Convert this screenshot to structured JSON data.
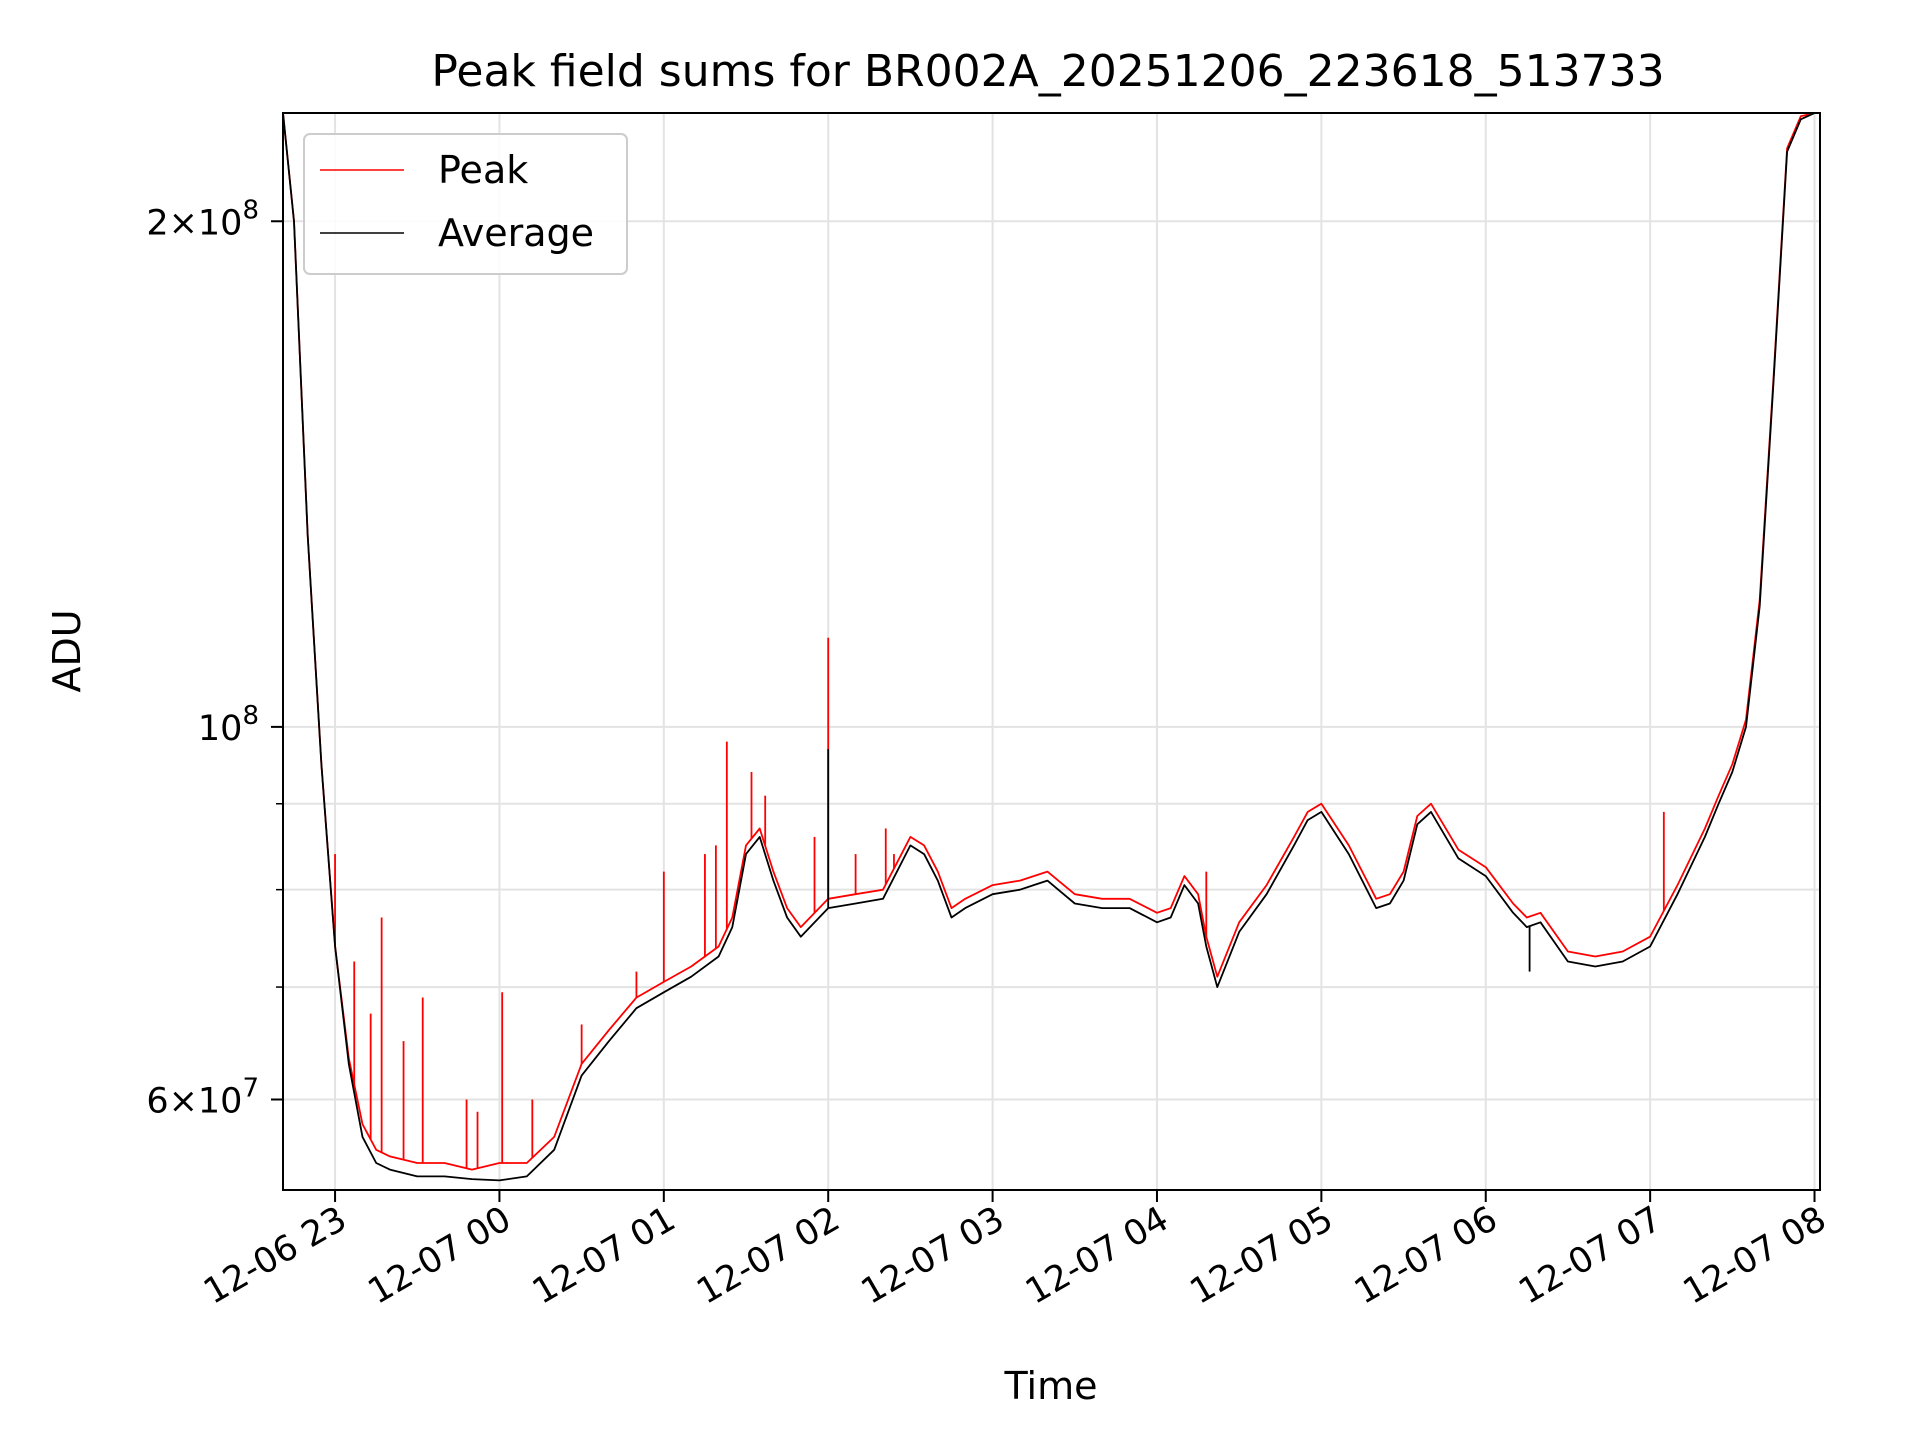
{
  "chart_data": {
    "type": "line",
    "title": "Peak field sums for BR002A_20251206_223618_513733",
    "xlabel": "Time",
    "ylabel": "ADU",
    "yscale": "log",
    "ylim": [
      53000000,
      232000000
    ],
    "xlim": [
      "2025-12-06 22:41",
      "2025-12-07 08:02"
    ],
    "grid": true,
    "legend_position": "top-left",
    "x_ticks": [
      "12-06 23",
      "12-07 00",
      "12-07 01",
      "12-07 02",
      "12-07 03",
      "12-07 04",
      "12-07 05",
      "12-07 06",
      "12-07 07",
      "12-07 08"
    ],
    "y_ticks": [
      {
        "value": 200000000,
        "label_mant": "2",
        "label_base": "10",
        "label_exp": "8"
      },
      {
        "value": 100000000,
        "label_mant": "",
        "label_base": "10",
        "label_exp": "8"
      },
      {
        "value": 60000000,
        "label_mant": "6",
        "label_base": "10",
        "label_exp": "7"
      }
    ],
    "y_minor_ticks": [
      70000000,
      80000000,
      90000000
    ],
    "x": [
      "2025-12-06 22:41",
      "2025-12-06 22:45",
      "2025-12-06 22:50",
      "2025-12-06 22:55",
      "2025-12-06 23:00",
      "2025-12-06 23:05",
      "2025-12-06 23:10",
      "2025-12-06 23:15",
      "2025-12-06 23:20",
      "2025-12-06 23:30",
      "2025-12-06 23:40",
      "2025-12-06 23:50",
      "2025-12-07 00:00",
      "2025-12-07 00:10",
      "2025-12-07 00:20",
      "2025-12-07 00:30",
      "2025-12-07 00:40",
      "2025-12-07 00:50",
      "2025-12-07 01:00",
      "2025-12-07 01:10",
      "2025-12-07 01:20",
      "2025-12-07 01:25",
      "2025-12-07 01:30",
      "2025-12-07 01:35",
      "2025-12-07 01:40",
      "2025-12-07 01:45",
      "2025-12-07 01:50",
      "2025-12-07 02:00",
      "2025-12-07 02:10",
      "2025-12-07 02:20",
      "2025-12-07 02:30",
      "2025-12-07 02:35",
      "2025-12-07 02:40",
      "2025-12-07 02:45",
      "2025-12-07 02:50",
      "2025-12-07 03:00",
      "2025-12-07 03:10",
      "2025-12-07 03:15",
      "2025-12-07 03:20",
      "2025-12-07 03:30",
      "2025-12-07 03:40",
      "2025-12-07 03:50",
      "2025-12-07 04:00",
      "2025-12-07 04:05",
      "2025-12-07 04:10",
      "2025-12-07 04:15",
      "2025-12-07 04:18",
      "2025-12-07 04:22",
      "2025-12-07 04:30",
      "2025-12-07 04:40",
      "2025-12-07 04:50",
      "2025-12-07 04:55",
      "2025-12-07 05:00",
      "2025-12-07 05:10",
      "2025-12-07 05:20",
      "2025-12-07 05:25",
      "2025-12-07 05:30",
      "2025-12-07 05:35",
      "2025-12-07 05:40",
      "2025-12-07 05:50",
      "2025-12-07 06:00",
      "2025-12-07 06:10",
      "2025-12-07 06:15",
      "2025-12-07 06:20",
      "2025-12-07 06:30",
      "2025-12-07 06:40",
      "2025-12-07 06:50",
      "2025-12-07 07:00",
      "2025-12-07 07:10",
      "2025-12-07 07:20",
      "2025-12-07 07:25",
      "2025-12-07 07:30",
      "2025-12-07 07:35",
      "2025-12-07 07:40",
      "2025-12-07 07:45",
      "2025-12-07 07:50",
      "2025-12-07 07:55",
      "2025-12-07 08:00"
    ],
    "series": [
      {
        "name": "Average",
        "color": "#000000",
        "values": [
          232000000,
          200000000,
          130000000,
          95000000,
          74000000,
          63000000,
          57000000,
          55000000,
          54500000,
          54000000,
          54000000,
          53800000,
          53700000,
          54000000,
          56000000,
          62000000,
          65000000,
          68000000,
          69500000,
          71000000,
          73000000,
          76000000,
          84000000,
          86000000,
          81000000,
          77000000,
          75000000,
          78000000,
          78500000,
          79000000,
          85000000,
          84000000,
          81000000,
          77000000,
          78000000,
          79500000,
          80000000,
          80500000,
          81000000,
          78500000,
          78000000,
          78000000,
          76500000,
          77000000,
          80500000,
          78500000,
          74000000,
          70000000,
          75500000,
          79500000,
          85000000,
          88000000,
          89000000,
          84000000,
          78000000,
          78500000,
          81000000,
          87500000,
          89000000,
          83500000,
          81500000,
          77500000,
          76000000,
          76500000,
          72500000,
          72000000,
          72500000,
          74000000,
          79500000,
          86000000,
          90000000,
          94000000,
          100000000,
          118000000,
          160000000,
          220000000,
          230000000,
          232000000
        ]
      },
      {
        "name": "Peak",
        "color": "#ff0000",
        "values": [
          232000000,
          200000000,
          130000000,
          95000000,
          74000000,
          63500000,
          58000000,
          56000000,
          55500000,
          55000000,
          55000000,
          54500000,
          55000000,
          55000000,
          57000000,
          63000000,
          66000000,
          69000000,
          70500000,
          72000000,
          74000000,
          77000000,
          85000000,
          87000000,
          82000000,
          78000000,
          76000000,
          79000000,
          79500000,
          80000000,
          86000000,
          85000000,
          82000000,
          78000000,
          79000000,
          80500000,
          81000000,
          81500000,
          82000000,
          79500000,
          79000000,
          79000000,
          77500000,
          78000000,
          81500000,
          79500000,
          75000000,
          71000000,
          76500000,
          80500000,
          86000000,
          89000000,
          90000000,
          85000000,
          79000000,
          79500000,
          82000000,
          88500000,
          90000000,
          84500000,
          82500000,
          78500000,
          77000000,
          77500000,
          73500000,
          73000000,
          73500000,
          75000000,
          80500000,
          87000000,
          91000000,
          95000000,
          101000000,
          119000000,
          161000000,
          221000000,
          231000000,
          232000000
        ]
      }
    ],
    "peak_spikes": [
      {
        "x": "2025-12-06 23:00",
        "y": 84000000
      },
      {
        "x": "2025-12-06 23:07",
        "y": 72500000
      },
      {
        "x": "2025-12-06 23:13",
        "y": 67500000
      },
      {
        "x": "2025-12-06 23:17",
        "y": 77000000
      },
      {
        "x": "2025-12-06 23:25",
        "y": 65000000
      },
      {
        "x": "2025-12-06 23:32",
        "y": 69000000
      },
      {
        "x": "2025-12-06 23:48",
        "y": 60000000
      },
      {
        "x": "2025-12-06 23:52",
        "y": 59000000
      },
      {
        "x": "2025-12-07 00:01",
        "y": 69500000
      },
      {
        "x": "2025-12-07 00:12",
        "y": 60000000
      },
      {
        "x": "2025-12-07 00:30",
        "y": 66500000
      },
      {
        "x": "2025-12-07 00:50",
        "y": 71500000
      },
      {
        "x": "2025-12-07 01:00",
        "y": 82000000
      },
      {
        "x": "2025-12-07 01:15",
        "y": 84000000
      },
      {
        "x": "2025-12-07 01:19",
        "y": 85000000
      },
      {
        "x": "2025-12-07 01:23",
        "y": 98000000
      },
      {
        "x": "2025-12-07 01:32",
        "y": 94000000
      },
      {
        "x": "2025-12-07 01:37",
        "y": 91000000
      },
      {
        "x": "2025-12-07 01:55",
        "y": 86000000
      },
      {
        "x": "2025-12-07 02:00",
        "y": 113000000
      },
      {
        "x": "2025-12-07 02:10",
        "y": 84000000
      },
      {
        "x": "2025-12-07 02:21",
        "y": 87000000
      },
      {
        "x": "2025-12-07 02:24",
        "y": 84000000
      },
      {
        "x": "2025-12-07 04:18",
        "y": 82000000
      },
      {
        "x": "2025-12-07 07:05",
        "y": 89000000
      }
    ],
    "avg_spikes": [
      {
        "x": "2025-12-07 02:00",
        "y": 97000000
      },
      {
        "x": "2025-12-07 06:16",
        "y": 71500000
      }
    ]
  }
}
